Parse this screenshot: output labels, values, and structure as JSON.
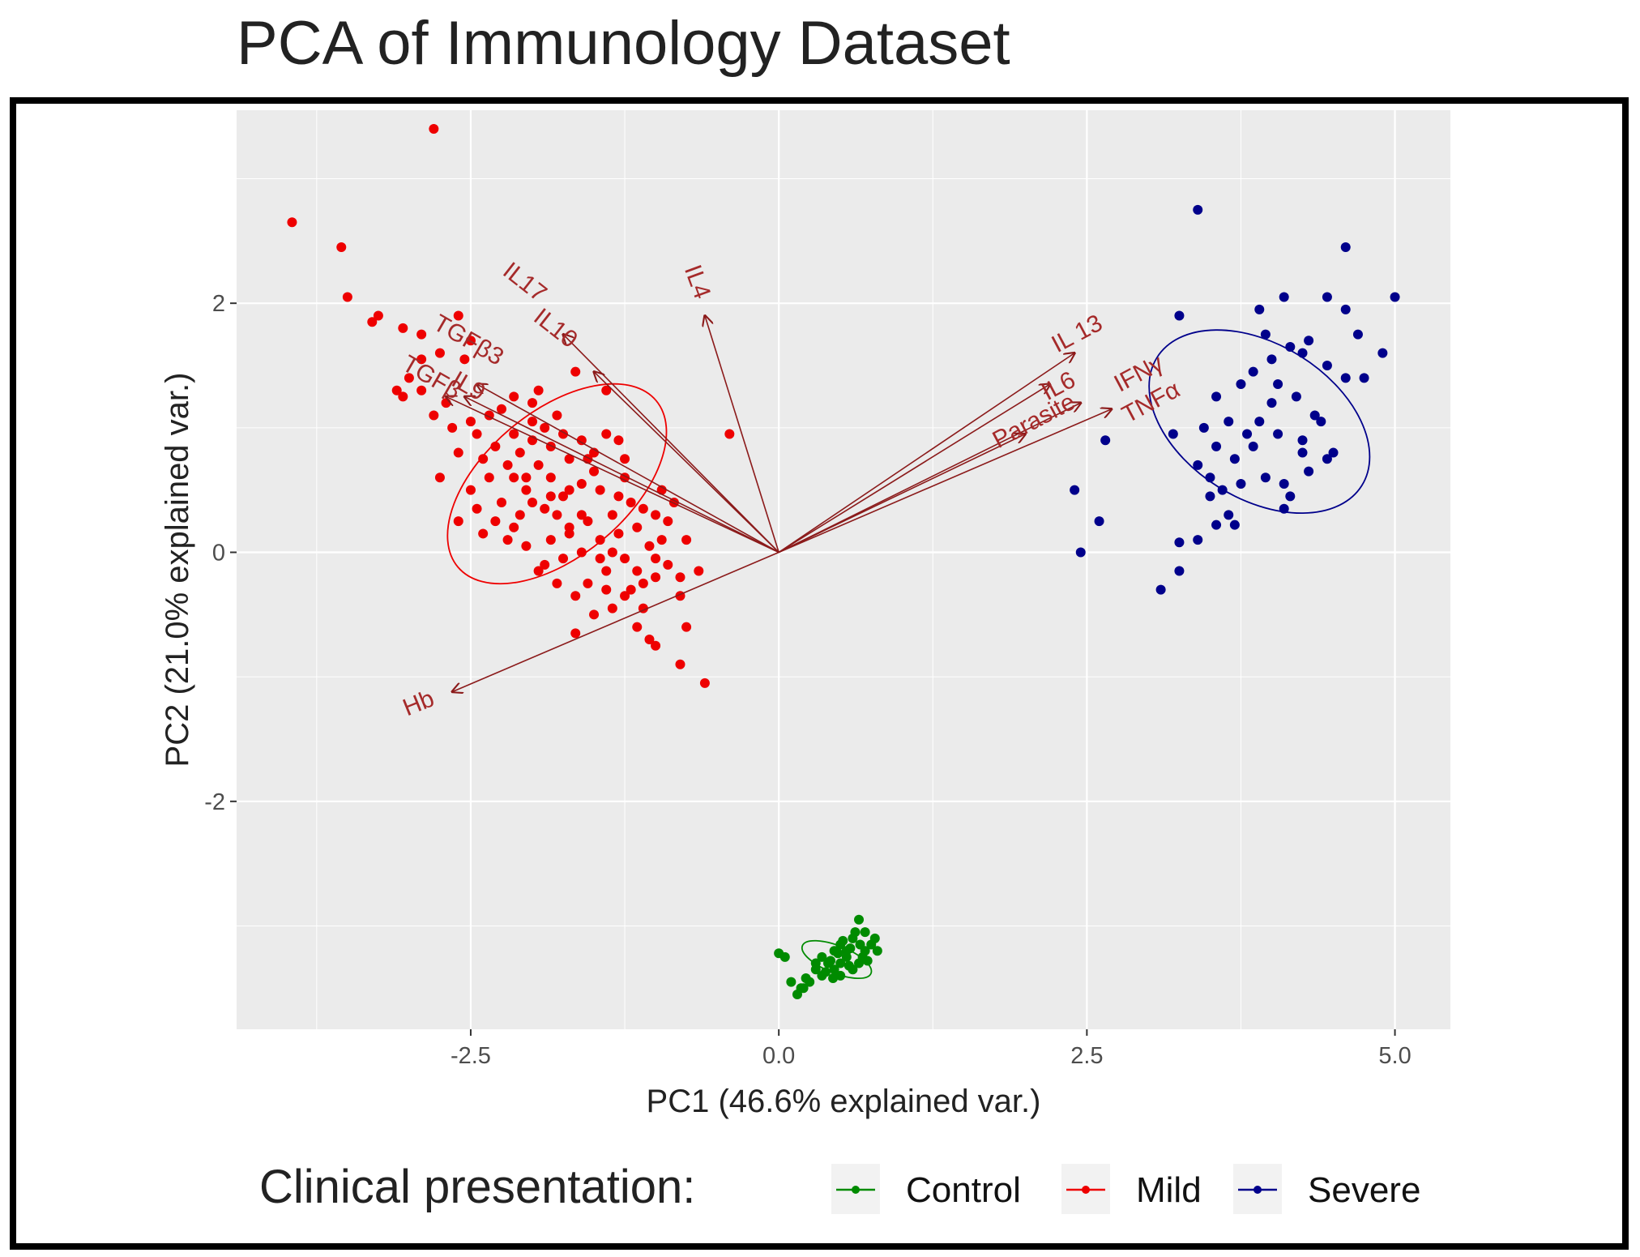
{
  "chart_data": {
    "type": "scatter",
    "subtype": "pca_biplot",
    "title": "PCA of Immunology Dataset",
    "xlabel": "PC1 (46.6% explained var.)",
    "ylabel": "PC2 (21.0% explained var.)",
    "xlim": [
      -4.4,
      5.45
    ],
    "ylim": [
      -3.83,
      3.55
    ],
    "xticks": [
      -2.5,
      0.0,
      2.5,
      5.0
    ],
    "xtick_labels": [
      "-2.5",
      "0.0",
      "2.5",
      "5.0"
    ],
    "yticks": [
      -2,
      0,
      2
    ],
    "ytick_labels": [
      "-2",
      "0",
      "2"
    ],
    "grid": true,
    "background": "#ebebeb",
    "legend": {
      "title": "Clinical presentation:",
      "position": "bottom",
      "entries": [
        "Control",
        "Mild",
        "Severe"
      ]
    },
    "series": [
      {
        "name": "Control",
        "color": "#008b00",
        "points": [
          [
            0.45,
            -3.35
          ],
          [
            0.55,
            -3.25
          ],
          [
            0.6,
            -3.1
          ],
          [
            0.65,
            -3.3
          ],
          [
            0.7,
            -3.2
          ],
          [
            0.5,
            -3.15
          ],
          [
            0.4,
            -3.3
          ],
          [
            0.35,
            -3.4
          ],
          [
            0.3,
            -3.35
          ],
          [
            0.25,
            -3.45
          ],
          [
            0.2,
            -3.5
          ],
          [
            0.15,
            -3.55
          ],
          [
            0.1,
            -3.45
          ],
          [
            0.05,
            -3.25
          ],
          [
            0.0,
            -3.22
          ],
          [
            0.5,
            -3.4
          ],
          [
            0.6,
            -3.35
          ],
          [
            0.7,
            -3.05
          ],
          [
            0.75,
            -3.15
          ],
          [
            0.8,
            -3.2
          ],
          [
            0.55,
            -3.2
          ],
          [
            0.45,
            -3.2
          ],
          [
            0.35,
            -3.25
          ],
          [
            0.5,
            -3.3
          ],
          [
            0.65,
            -2.95
          ],
          [
            0.68,
            -3.25
          ],
          [
            0.58,
            -3.18
          ],
          [
            0.42,
            -3.28
          ],
          [
            0.3,
            -3.3
          ],
          [
            0.62,
            -3.05
          ],
          [
            0.48,
            -3.22
          ],
          [
            0.52,
            -3.12
          ],
          [
            0.72,
            -3.28
          ],
          [
            0.38,
            -3.37
          ],
          [
            0.22,
            -3.42
          ],
          [
            0.18,
            -3.5
          ],
          [
            0.57,
            -3.32
          ],
          [
            0.66,
            -3.15
          ],
          [
            0.78,
            -3.1
          ],
          [
            0.44,
            -3.42
          ]
        ]
      },
      {
        "name": "Mild",
        "color": "#ee0000",
        "points": [
          [
            -2.8,
            3.4
          ],
          [
            -3.95,
            2.65
          ],
          [
            -3.55,
            2.45
          ],
          [
            -3.5,
            2.05
          ],
          [
            -3.3,
            1.85
          ],
          [
            -3.25,
            1.9
          ],
          [
            -3.05,
            1.8
          ],
          [
            -2.9,
            1.75
          ],
          [
            -2.6,
            1.9
          ],
          [
            -2.5,
            1.7
          ],
          [
            -2.55,
            1.55
          ],
          [
            -2.75,
            1.6
          ],
          [
            -2.9,
            1.55
          ],
          [
            -3.0,
            1.4
          ],
          [
            -3.1,
            1.3
          ],
          [
            -3.05,
            1.25
          ],
          [
            -2.9,
            1.3
          ],
          [
            -2.8,
            1.1
          ],
          [
            -2.7,
            1.2
          ],
          [
            -2.65,
            1.0
          ],
          [
            -2.5,
            1.05
          ],
          [
            -2.45,
            0.95
          ],
          [
            -2.35,
            1.1
          ],
          [
            -2.3,
            0.85
          ],
          [
            -2.4,
            0.75
          ],
          [
            -2.6,
            0.8
          ],
          [
            -2.75,
            0.6
          ],
          [
            -2.5,
            0.5
          ],
          [
            -2.35,
            0.6
          ],
          [
            -2.2,
            0.7
          ],
          [
            -2.1,
            0.8
          ],
          [
            -2.0,
            0.9
          ],
          [
            -1.9,
            1.0
          ],
          [
            -1.8,
            1.1
          ],
          [
            -2.0,
            1.2
          ],
          [
            -2.15,
            1.25
          ],
          [
            -1.95,
            1.3
          ],
          [
            -1.65,
            1.45
          ],
          [
            -1.4,
            1.3
          ],
          [
            -1.3,
            0.9
          ],
          [
            -1.5,
            0.8
          ],
          [
            -1.7,
            0.75
          ],
          [
            -1.85,
            0.6
          ],
          [
            -2.05,
            0.5
          ],
          [
            -2.25,
            0.4
          ],
          [
            -2.1,
            0.3
          ],
          [
            -1.9,
            0.35
          ],
          [
            -1.75,
            0.45
          ],
          [
            -1.6,
            0.55
          ],
          [
            -1.45,
            0.5
          ],
          [
            -1.25,
            0.6
          ],
          [
            -1.2,
            0.4
          ],
          [
            -1.35,
            0.3
          ],
          [
            -1.55,
            0.25
          ],
          [
            -1.7,
            0.15
          ],
          [
            -1.85,
            0.1
          ],
          [
            -2.05,
            0.05
          ],
          [
            -2.2,
            0.1
          ],
          [
            -2.4,
            0.15
          ],
          [
            -2.6,
            0.25
          ],
          [
            -1.6,
            0.0
          ],
          [
            -1.45,
            0.1
          ],
          [
            -1.3,
            0.15
          ],
          [
            -1.15,
            0.2
          ],
          [
            -1.0,
            0.3
          ],
          [
            -0.95,
            0.5
          ],
          [
            -0.85,
            0.4
          ],
          [
            -0.9,
            0.25
          ],
          [
            -1.05,
            0.05
          ],
          [
            -1.25,
            -0.05
          ],
          [
            -1.4,
            -0.15
          ],
          [
            -1.55,
            -0.25
          ],
          [
            -1.65,
            -0.35
          ],
          [
            -1.2,
            -0.3
          ],
          [
            -1.0,
            -0.2
          ],
          [
            -0.9,
            -0.1
          ],
          [
            -0.8,
            -0.2
          ],
          [
            -0.75,
            0.1
          ],
          [
            -0.8,
            -0.35
          ],
          [
            -0.65,
            -0.15
          ],
          [
            -1.15,
            -0.6
          ],
          [
            -1.05,
            -0.7
          ],
          [
            -1.0,
            -0.75
          ],
          [
            -1.65,
            -0.65
          ],
          [
            -1.95,
            -0.15
          ],
          [
            -1.8,
            -0.25
          ],
          [
            -0.6,
            -1.05
          ],
          [
            -0.8,
            -0.9
          ],
          [
            -0.4,
            0.95
          ],
          [
            -1.1,
            -0.45
          ],
          [
            -1.35,
            -0.45
          ],
          [
            -1.5,
            -0.5
          ],
          [
            -0.75,
            -0.6
          ],
          [
            -1.8,
            0.3
          ],
          [
            -1.95,
            0.7
          ],
          [
            -2.15,
            0.95
          ],
          [
            -2.25,
            1.15
          ],
          [
            -2.05,
            0.6
          ],
          [
            -1.6,
            0.9
          ],
          [
            -1.4,
            0.95
          ],
          [
            -1.25,
            0.75
          ],
          [
            -1.5,
            0.65
          ],
          [
            -1.7,
            0.5
          ],
          [
            -1.85,
            0.85
          ],
          [
            -2.0,
            0.4
          ],
          [
            -2.15,
            0.2
          ],
          [
            -1.35,
            0.0
          ],
          [
            -1.15,
            -0.15
          ],
          [
            -1.45,
            -0.05
          ],
          [
            -1.6,
            0.3
          ],
          [
            -1.75,
            -0.05
          ],
          [
            -1.9,
            -0.1
          ],
          [
            -2.3,
            0.25
          ],
          [
            -2.45,
            0.35
          ],
          [
            -2.15,
            0.6
          ],
          [
            -2.0,
            1.05
          ],
          [
            -1.75,
            0.95
          ],
          [
            -1.55,
            0.75
          ],
          [
            -1.3,
            0.45
          ],
          [
            -1.1,
            0.35
          ],
          [
            -0.95,
            0.1
          ],
          [
            -1.0,
            -0.05
          ],
          [
            -1.1,
            -0.25
          ],
          [
            -1.25,
            -0.35
          ],
          [
            -1.4,
            -0.3
          ],
          [
            -1.7,
            0.2
          ],
          [
            -1.85,
            0.45
          ]
        ]
      },
      {
        "name": "Severe",
        "color": "#00008b",
        "points": [
          [
            3.4,
            2.75
          ],
          [
            4.6,
            2.45
          ],
          [
            5.0,
            2.05
          ],
          [
            4.45,
            2.05
          ],
          [
            4.1,
            2.05
          ],
          [
            3.9,
            1.95
          ],
          [
            3.25,
            1.9
          ],
          [
            4.6,
            1.95
          ],
          [
            4.7,
            1.75
          ],
          [
            4.9,
            1.6
          ],
          [
            4.75,
            1.4
          ],
          [
            4.6,
            1.4
          ],
          [
            4.3,
            1.7
          ],
          [
            4.25,
            1.6
          ],
          [
            4.15,
            1.65
          ],
          [
            4.0,
            1.55
          ],
          [
            3.85,
            1.45
          ],
          [
            3.75,
            1.35
          ],
          [
            3.55,
            1.25
          ],
          [
            4.45,
            1.5
          ],
          [
            4.05,
            1.35
          ],
          [
            4.2,
            1.25
          ],
          [
            4.35,
            1.1
          ],
          [
            4.0,
            1.2
          ],
          [
            3.9,
            1.05
          ],
          [
            3.65,
            1.05
          ],
          [
            3.45,
            1.0
          ],
          [
            3.55,
            0.85
          ],
          [
            3.7,
            0.75
          ],
          [
            3.85,
            0.85
          ],
          [
            4.05,
            0.95
          ],
          [
            4.25,
            0.9
          ],
          [
            4.45,
            0.75
          ],
          [
            4.5,
            0.8
          ],
          [
            3.4,
            0.7
          ],
          [
            3.5,
            0.6
          ],
          [
            3.6,
            0.5
          ],
          [
            3.75,
            0.55
          ],
          [
            3.95,
            0.6
          ],
          [
            4.1,
            0.55
          ],
          [
            4.3,
            0.65
          ],
          [
            3.5,
            0.45
          ],
          [
            3.65,
            0.3
          ],
          [
            3.55,
            0.22
          ],
          [
            3.7,
            0.22
          ],
          [
            4.1,
            0.35
          ],
          [
            4.15,
            0.45
          ],
          [
            3.2,
            0.95
          ],
          [
            2.65,
            0.9
          ],
          [
            2.4,
            0.5
          ],
          [
            2.6,
            0.25
          ],
          [
            2.45,
            0.0
          ],
          [
            3.25,
            0.08
          ],
          [
            3.4,
            0.1
          ],
          [
            3.25,
            -0.15
          ],
          [
            3.1,
            -0.3
          ],
          [
            4.25,
            0.8
          ],
          [
            3.8,
            0.95
          ],
          [
            4.4,
            1.05
          ],
          [
            3.95,
            1.75
          ]
        ]
      }
    ],
    "ellipses": [
      {
        "series": "Mild",
        "center": [
          -1.8,
          0.55
        ],
        "radii": [
          1.05,
          0.58
        ],
        "angle_deg": -40
      },
      {
        "series": "Severe",
        "center": [
          3.9,
          1.05
        ],
        "radii": [
          0.98,
          0.62
        ],
        "angle_deg": 32
      },
      {
        "series": "Control",
        "center": [
          0.47,
          -3.27
        ],
        "radii": [
          0.3,
          0.11
        ],
        "angle_deg": 22
      }
    ],
    "loadings": {
      "color": "#8b1a1a",
      "arrows": [
        {
          "label": "IL17",
          "x": -1.75,
          "y": 1.75,
          "label_x": -2.1,
          "label_y": 2.12,
          "angle": 38
        },
        {
          "label": "IL10",
          "x": -1.5,
          "y": 1.45,
          "label_x": -1.85,
          "label_y": 1.75,
          "angle": 38
        },
        {
          "label": "IL4",
          "x": -0.6,
          "y": 1.9,
          "label_x": -0.72,
          "label_y": 2.15,
          "angle": 70
        },
        {
          "label": "TGFβ3",
          "x": -2.45,
          "y": 1.35,
          "label_x": -2.55,
          "label_y": 1.65,
          "angle": 30
        },
        {
          "label": "TGFβ",
          "x": -2.7,
          "y": 1.25,
          "label_x": -2.85,
          "label_y": 1.35,
          "angle": 30
        },
        {
          "label": "IL9",
          "x": -2.55,
          "y": 1.25,
          "label_x": -2.55,
          "label_y": 1.28,
          "angle": 30
        },
        {
          "label": "IL 13",
          "x": 2.4,
          "y": 1.6,
          "label_x": 2.45,
          "label_y": 1.7,
          "angle": -28
        },
        {
          "label": "IL6",
          "x": 2.2,
          "y": 1.35,
          "label_x": 2.3,
          "label_y": 1.28,
          "angle": -28
        },
        {
          "label": "IFNγ",
          "x": 2.45,
          "y": 1.2,
          "label_x": 2.95,
          "label_y": 1.38,
          "angle": -28
        },
        {
          "label": "TNFα",
          "x": 2.7,
          "y": 1.15,
          "label_x": 3.05,
          "label_y": 1.15,
          "angle": -28
        },
        {
          "label": "Parasite",
          "x": 2.0,
          "y": 0.95,
          "label_x": 2.1,
          "label_y": 1.0,
          "angle": -28
        },
        {
          "label": "Hb",
          "x": -2.65,
          "y": -1.12,
          "label_x": -2.9,
          "label_y": -1.27,
          "angle": -22
        }
      ]
    }
  }
}
